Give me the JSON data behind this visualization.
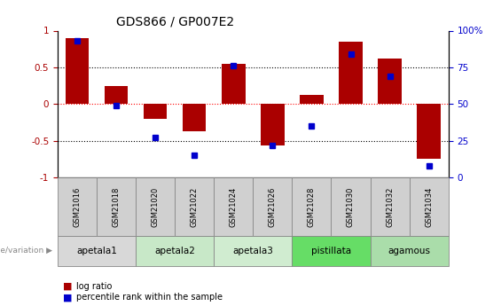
{
  "title": "GDS866 / GP007E2",
  "samples": [
    "GSM21016",
    "GSM21018",
    "GSM21020",
    "GSM21022",
    "GSM21024",
    "GSM21026",
    "GSM21028",
    "GSM21030",
    "GSM21032",
    "GSM21034"
  ],
  "log_ratio": [
    0.9,
    0.25,
    -0.2,
    -0.37,
    0.55,
    -0.57,
    0.12,
    0.85,
    0.62,
    -0.75
  ],
  "percentile_rank": [
    93,
    49,
    27,
    15,
    76,
    22,
    35,
    84,
    69,
    8
  ],
  "bar_color": "#aa0000",
  "dot_color": "#0000cc",
  "groups": [
    {
      "label": "apetala1",
      "start": 0,
      "end": 2,
      "color": "#d8d8d8"
    },
    {
      "label": "apetala2",
      "start": 2,
      "end": 4,
      "color": "#c8e8c8"
    },
    {
      "label": "apetala3",
      "start": 4,
      "end": 6,
      "color": "#d0ecd0"
    },
    {
      "label": "pistillata",
      "start": 6,
      "end": 8,
      "color": "#66dd66"
    },
    {
      "label": "agamous",
      "start": 8,
      "end": 10,
      "color": "#aaddaa"
    }
  ],
  "sample_box_color": "#d0d0d0",
  "ylim": [
    -1.0,
    1.0
  ],
  "yticks_left": [
    -1.0,
    -0.5,
    0.0,
    0.5,
    1.0
  ],
  "yticks_right": [
    0,
    25,
    50,
    75,
    100
  ],
  "hlines": [
    -0.5,
    0.0,
    0.5
  ],
  "hline_colors": [
    "black",
    "red",
    "black"
  ],
  "hline_styles": [
    "dotted",
    "dotted",
    "dotted"
  ],
  "legend_log_ratio": "log ratio",
  "legend_percentile": "percentile rank within the sample",
  "genotype_label": "genotype/variation"
}
